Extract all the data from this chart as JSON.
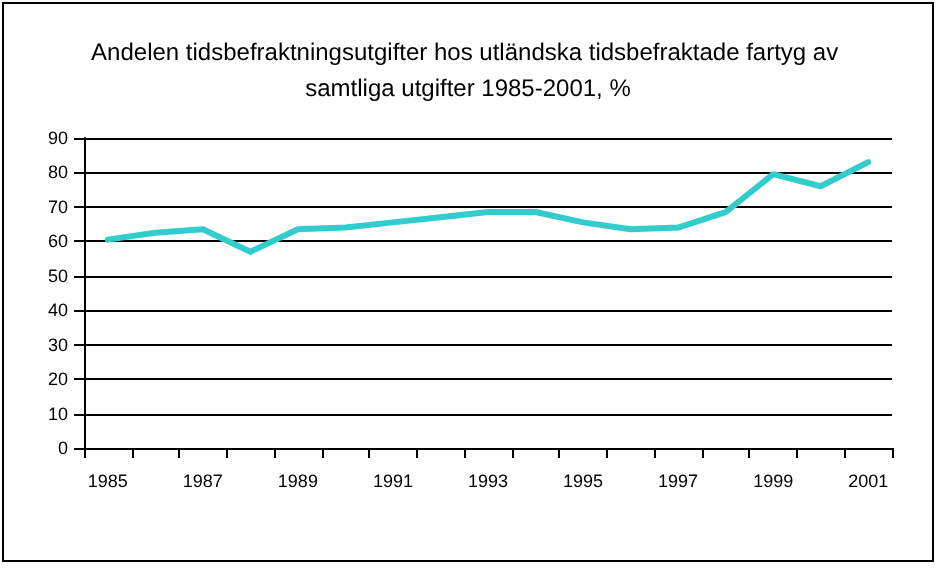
{
  "chart_data": {
    "type": "line",
    "title": "Andelen tidsbefraktningsutgifter hos utländska tidsbefraktade fartyg av samtliga utgifter 1985-2001, %",
    "categories": [
      "1985",
      null,
      "1987",
      null,
      "1989",
      null,
      "1991",
      null,
      "1993",
      null,
      "1995",
      null,
      "1997",
      null,
      "1999",
      null,
      "2001"
    ],
    "series": [
      {
        "color": "#33cccc",
        "values": [
          60.5,
          62.5,
          63.5,
          57,
          63.5,
          64,
          65.5,
          67,
          68.5,
          68.5,
          65.5,
          63.5,
          64,
          68.5,
          79.5,
          76,
          83
        ]
      }
    ],
    "ylim": [
      0,
      90
    ],
    "yticks": [
      0,
      10,
      20,
      30,
      40,
      50,
      60,
      70,
      80,
      90
    ],
    "grid": "y",
    "marker": "none",
    "line_style": "solid"
  }
}
